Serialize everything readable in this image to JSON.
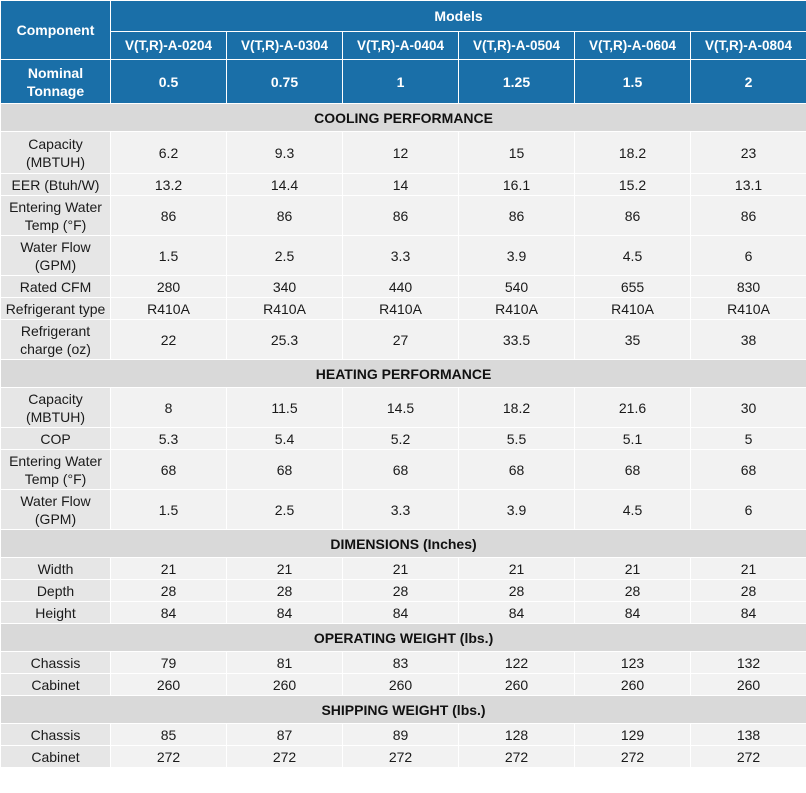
{
  "header": {
    "component_label": "Component",
    "models_label": "Models",
    "models": [
      "V(T,R)-A-0204",
      "V(T,R)-A-0304",
      "V(T,R)-A-0404",
      "V(T,R)-A-0504",
      "V(T,R)-A-0604",
      "V(T,R)-A-0804"
    ],
    "tonnage_label": "Nominal Tonnage",
    "tonnage": [
      "0.5",
      "0.75",
      "1",
      "1.25",
      "1.5",
      "2"
    ]
  },
  "colors": {
    "header_bg": "#1a6fa8",
    "section_bg": "#d9d9d9",
    "label_bg": "#e6e6e6",
    "value_bg": "#f2f2f2"
  },
  "sections": [
    {
      "title": "COOLING PERFORMANCE",
      "rows": [
        {
          "label": "Capacity (MBTUH)",
          "values": [
            "6.2",
            "9.3",
            "12",
            "15",
            "18.2",
            "23"
          ]
        },
        {
          "label": "EER (Btuh/W)",
          "values": [
            "13.2",
            "14.4",
            "14",
            "16.1",
            "15.2",
            "13.1"
          ]
        },
        {
          "label": "Entering Water Temp (°F)",
          "values": [
            "86",
            "86",
            "86",
            "86",
            "86",
            "86"
          ]
        },
        {
          "label": "Water Flow (GPM)",
          "values": [
            "1.5",
            "2.5",
            "3.3",
            "3.9",
            "4.5",
            "6"
          ]
        },
        {
          "label": "Rated CFM",
          "values": [
            "280",
            "340",
            "440",
            "540",
            "655",
            "830"
          ]
        },
        {
          "label": "Refrigerant type",
          "values": [
            "R410A",
            "R410A",
            "R410A",
            "R410A",
            "R410A",
            "R410A"
          ]
        },
        {
          "label": "Refrigerant charge (oz)",
          "values": [
            "22",
            "25.3",
            "27",
            "33.5",
            "35",
            "38"
          ]
        }
      ]
    },
    {
      "title": "HEATING PERFORMANCE",
      "rows": [
        {
          "label": "Capacity (MBTUH)",
          "values": [
            "8",
            "11.5",
            "14.5",
            "18.2",
            "21.6",
            "30"
          ]
        },
        {
          "label": "COP",
          "values": [
            "5.3",
            "5.4",
            "5.2",
            "5.5",
            "5.1",
            "5"
          ]
        },
        {
          "label": "Entering Water Temp (°F)",
          "values": [
            "68",
            "68",
            "68",
            "68",
            "68",
            "68"
          ]
        },
        {
          "label": "Water Flow (GPM)",
          "values": [
            "1.5",
            "2.5",
            "3.3",
            "3.9",
            "4.5",
            "6"
          ]
        }
      ]
    },
    {
      "title": "DIMENSIONS (Inches)",
      "rows": [
        {
          "label": "Width",
          "values": [
            "21",
            "21",
            "21",
            "21",
            "21",
            "21"
          ]
        },
        {
          "label": "Depth",
          "values": [
            "28",
            "28",
            "28",
            "28",
            "28",
            "28"
          ]
        },
        {
          "label": "Height",
          "values": [
            "84",
            "84",
            "84",
            "84",
            "84",
            "84"
          ]
        }
      ]
    },
    {
      "title": "OPERATING WEIGHT (lbs.)",
      "rows": [
        {
          "label": "Chassis",
          "values": [
            "79",
            "81",
            "83",
            "122",
            "123",
            "132"
          ]
        },
        {
          "label": "Cabinet",
          "values": [
            "260",
            "260",
            "260",
            "260",
            "260",
            "260"
          ]
        }
      ]
    },
    {
      "title": "SHIPPING WEIGHT (lbs.)",
      "rows": [
        {
          "label": "Chassis",
          "values": [
            "85",
            "87",
            "89",
            "128",
            "129",
            "138"
          ]
        },
        {
          "label": "Cabinet",
          "values": [
            "272",
            "272",
            "272",
            "272",
            "272",
            "272"
          ]
        }
      ]
    }
  ]
}
